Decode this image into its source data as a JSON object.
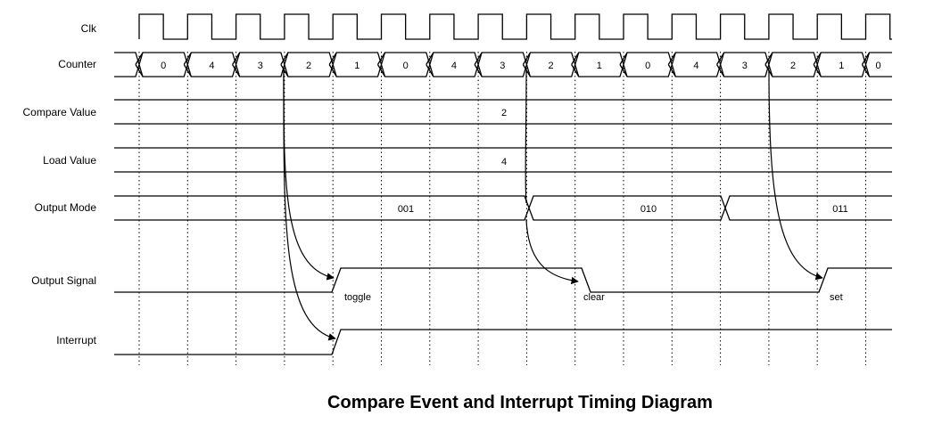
{
  "title": "Compare Event and Interrupt Timing Diagram",
  "signals": {
    "clk": "Clk",
    "counter": "Counter",
    "compare_value": "Compare Value",
    "load_value": "Load Value",
    "output_mode": "Output Mode",
    "output_signal": "Output Signal",
    "interrupt": "Interrupt"
  },
  "counter_values": [
    "0",
    "4",
    "3",
    "2",
    "1",
    "0",
    "4",
    "3",
    "2",
    "1",
    "0",
    "4",
    "3",
    "2",
    "1",
    "0"
  ],
  "compare_value": "2",
  "load_value": "4",
  "output_modes": [
    "001",
    "010",
    "011"
  ],
  "events": [
    "toggle",
    "clear",
    "set"
  ]
}
